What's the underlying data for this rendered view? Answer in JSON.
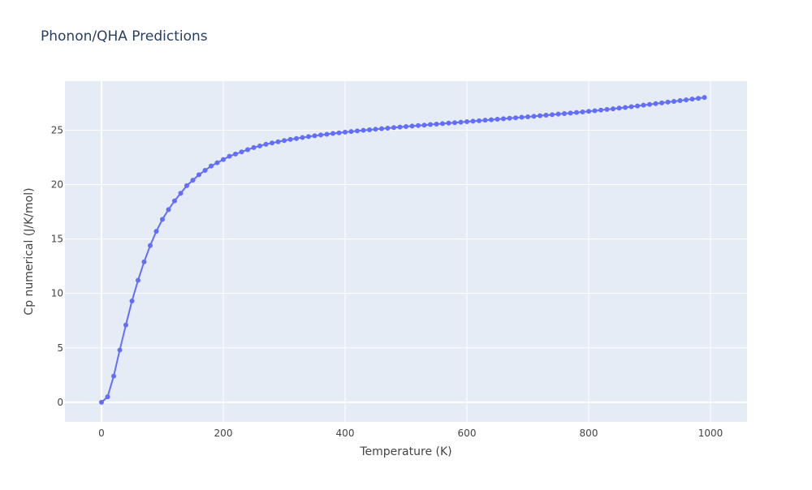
{
  "colors": {
    "plot_bg": "#e5ecf6",
    "grid": "#ffffff",
    "series": "#636efa",
    "paper": "#ffffff"
  },
  "chart_data": {
    "type": "line",
    "title": "Phonon/QHA Predictions",
    "xlabel": "Temperature (K)",
    "ylabel": "Cp numerical (J/K/mol)",
    "xlim": [
      -60,
      1060
    ],
    "ylim": [
      -1.8,
      29.5
    ],
    "xticks": [
      0,
      200,
      400,
      600,
      800,
      1000
    ],
    "xtick_labels": [
      "0",
      "200",
      "400",
      "600",
      "800",
      "1000"
    ],
    "yticks": [
      0,
      5,
      10,
      15,
      20,
      25
    ],
    "ytick_labels": [
      "0",
      "5",
      "10",
      "15",
      "20",
      "25"
    ],
    "grid": true,
    "markers": true,
    "series": [
      {
        "x": [
          0,
          10,
          20,
          30,
          40,
          50,
          60,
          70,
          80,
          90,
          100,
          110,
          120,
          130,
          140,
          150,
          160,
          170,
          180,
          190,
          200,
          210,
          220,
          230,
          240,
          250,
          260,
          270,
          280,
          290,
          300,
          310,
          320,
          330,
          340,
          350,
          360,
          370,
          380,
          390,
          400,
          410,
          420,
          430,
          440,
          450,
          460,
          470,
          480,
          490,
          500,
          510,
          520,
          530,
          540,
          550,
          560,
          570,
          580,
          590,
          600,
          610,
          620,
          630,
          640,
          650,
          660,
          670,
          680,
          690,
          700,
          710,
          720,
          730,
          740,
          750,
          760,
          770,
          780,
          790,
          800,
          810,
          820,
          830,
          840,
          850,
          860,
          870,
          880,
          890,
          900,
          910,
          920,
          930,
          940,
          950,
          960,
          970,
          980,
          990
        ],
        "y": [
          0.0,
          0.5,
          2.4,
          4.8,
          7.1,
          9.3,
          11.2,
          12.9,
          14.4,
          15.7,
          16.8,
          17.7,
          18.5,
          19.2,
          19.9,
          20.4,
          20.9,
          21.3,
          21.7,
          22.0,
          22.3,
          22.6,
          22.8,
          23.0,
          23.2,
          23.4,
          23.55,
          23.7,
          23.82,
          23.93,
          24.04,
          24.14,
          24.23,
          24.32,
          24.4,
          24.48,
          24.55,
          24.62,
          24.69,
          24.75,
          24.81,
          24.87,
          24.93,
          24.98,
          25.03,
          25.08,
          25.13,
          25.18,
          25.23,
          25.28,
          25.33,
          25.37,
          25.42,
          25.46,
          25.51,
          25.55,
          25.6,
          25.64,
          25.68,
          25.73,
          25.77,
          25.82,
          25.86,
          25.91,
          25.95,
          26.0,
          26.04,
          26.09,
          26.13,
          26.18,
          26.22,
          26.27,
          26.32,
          26.37,
          26.42,
          26.47,
          26.52,
          26.57,
          26.62,
          26.67,
          26.72,
          26.78,
          26.84,
          26.9,
          26.96,
          27.02,
          27.08,
          27.15,
          27.22,
          27.29,
          27.36,
          27.43,
          27.5,
          27.57,
          27.64,
          27.71,
          27.78,
          27.85,
          27.92,
          28.0
        ]
      }
    ]
  }
}
